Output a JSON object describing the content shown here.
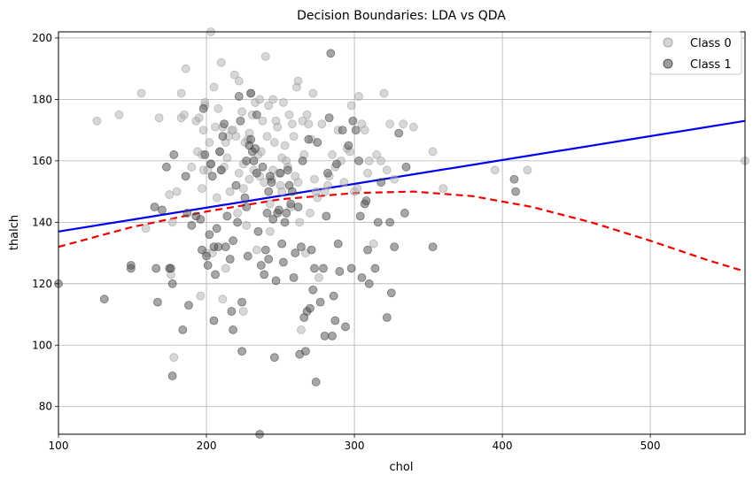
{
  "chart_data": {
    "type": "scatter",
    "title": "Decision Boundaries: LDA vs QDA",
    "xlabel": "chol",
    "ylabel": "thalch",
    "xlim": [
      100,
      564
    ],
    "ylim": [
      71,
      202
    ],
    "xticks": [
      100,
      200,
      300,
      400,
      500
    ],
    "yticks": [
      80,
      100,
      120,
      140,
      160,
      180,
      200
    ],
    "grid": true,
    "legend_position": "top-right",
    "series": [
      {
        "name": "Class 0",
        "color": "#b0b0b0",
        "points": [
          [
            126,
            173
          ],
          [
            141,
            175
          ],
          [
            156,
            182
          ],
          [
            159,
            138
          ],
          [
            168,
            174
          ],
          [
            175,
            149
          ],
          [
            176,
            123
          ],
          [
            177,
            140
          ],
          [
            178,
            96
          ],
          [
            180,
            150
          ],
          [
            183,
            174
          ],
          [
            183,
            182
          ],
          [
            185,
            175
          ],
          [
            186,
            190
          ],
          [
            190,
            158
          ],
          [
            193,
            173
          ],
          [
            194,
            163
          ],
          [
            195,
            174
          ],
          [
            196,
            116
          ],
          [
            197,
            151
          ],
          [
            197,
            162
          ],
          [
            198,
            157
          ],
          [
            198,
            170
          ],
          [
            199,
            178
          ],
          [
            199,
            179
          ],
          [
            200,
            130
          ],
          [
            201,
            157
          ],
          [
            202,
            166
          ],
          [
            203,
            159
          ],
          [
            203,
            202
          ],
          [
            204,
            130
          ],
          [
            205,
            184
          ],
          [
            206,
            171
          ],
          [
            207,
            148
          ],
          [
            208,
            177
          ],
          [
            209,
            163
          ],
          [
            210,
            157
          ],
          [
            210,
            192
          ],
          [
            211,
            171
          ],
          [
            211,
            115
          ],
          [
            212,
            158
          ],
          [
            213,
            166
          ],
          [
            213,
            125
          ],
          [
            214,
            161
          ],
          [
            215,
            168
          ],
          [
            216,
            150
          ],
          [
            217,
            170
          ],
          [
            218,
            170
          ],
          [
            219,
            188
          ],
          [
            220,
            168
          ],
          [
            221,
            143
          ],
          [
            222,
            156
          ],
          [
            222,
            186
          ],
          [
            224,
            176
          ],
          [
            225,
            151
          ],
          [
            225,
            159
          ],
          [
            225,
            111
          ],
          [
            226,
            166
          ],
          [
            227,
            139
          ],
          [
            228,
            167
          ],
          [
            229,
            169
          ],
          [
            229,
            154
          ],
          [
            230,
            182
          ],
          [
            231,
            175
          ],
          [
            232,
            157
          ],
          [
            233,
            179
          ],
          [
            234,
            131
          ],
          [
            235,
            162
          ],
          [
            236,
            155
          ],
          [
            236,
            180
          ],
          [
            237,
            163
          ],
          [
            238,
            173
          ],
          [
            239,
            153
          ],
          [
            240,
            194
          ],
          [
            241,
            168
          ],
          [
            242,
            178
          ],
          [
            243,
            146
          ],
          [
            243,
            137
          ],
          [
            244,
            154
          ],
          [
            245,
            180
          ],
          [
            245,
            157
          ],
          [
            246,
            166
          ],
          [
            247,
            173
          ],
          [
            248,
            171
          ],
          [
            249,
            156
          ],
          [
            250,
            152
          ],
          [
            251,
            150
          ],
          [
            251,
            161
          ],
          [
            252,
            179
          ],
          [
            253,
            165
          ],
          [
            254,
            160
          ],
          [
            255,
            158
          ],
          [
            256,
            175
          ],
          [
            257,
            145
          ],
          [
            258,
            172
          ],
          [
            259,
            168
          ],
          [
            260,
            155
          ],
          [
            261,
            184
          ],
          [
            262,
            186
          ],
          [
            262,
            153
          ],
          [
            263,
            140
          ],
          [
            264,
            105
          ],
          [
            265,
            173
          ],
          [
            266,
            162
          ],
          [
            267,
            130
          ],
          [
            268,
            175
          ],
          [
            269,
            172
          ],
          [
            270,
            143
          ],
          [
            271,
            167
          ],
          [
            272,
            182
          ],
          [
            273,
            154
          ],
          [
            274,
            150
          ],
          [
            275,
            148
          ],
          [
            276,
            122
          ],
          [
            278,
            172
          ],
          [
            280,
            150
          ],
          [
            282,
            152
          ],
          [
            283,
            155
          ],
          [
            285,
            162
          ],
          [
            287,
            158
          ],
          [
            289,
            170
          ],
          [
            291,
            160
          ],
          [
            293,
            153
          ],
          [
            295,
            164
          ],
          [
            297,
            163
          ],
          [
            298,
            178
          ],
          [
            300,
            150
          ],
          [
            302,
            151
          ],
          [
            303,
            181
          ],
          [
            305,
            172
          ],
          [
            307,
            170
          ],
          [
            309,
            156
          ],
          [
            310,
            160
          ],
          [
            313,
            133
          ],
          [
            315,
            162
          ],
          [
            318,
            160
          ],
          [
            320,
            182
          ],
          [
            322,
            157
          ],
          [
            324,
            172
          ],
          [
            327,
            154
          ],
          [
            333,
            172
          ],
          [
            340,
            171
          ],
          [
            353,
            163
          ],
          [
            360,
            151
          ],
          [
            395,
            157
          ],
          [
            417,
            157
          ],
          [
            564,
            160
          ]
        ]
      },
      {
        "name": "Class 1",
        "color": "#4d4d4d",
        "points": [
          [
            100,
            120
          ],
          [
            131,
            115
          ],
          [
            149,
            125
          ],
          [
            149,
            126
          ],
          [
            165,
            145
          ],
          [
            166,
            125
          ],
          [
            167,
            114
          ],
          [
            170,
            144
          ],
          [
            173,
            158
          ],
          [
            175,
            125
          ],
          [
            176,
            125
          ],
          [
            177,
            90
          ],
          [
            177,
            120
          ],
          [
            178,
            162
          ],
          [
            184,
            105
          ],
          [
            186,
            155
          ],
          [
            187,
            143
          ],
          [
            188,
            113
          ],
          [
            190,
            139
          ],
          [
            193,
            142
          ],
          [
            196,
            141
          ],
          [
            197,
            131
          ],
          [
            198,
            177
          ],
          [
            199,
            162
          ],
          [
            200,
            129
          ],
          [
            201,
            126
          ],
          [
            202,
            136
          ],
          [
            203,
            159
          ],
          [
            204,
            155
          ],
          [
            205,
            132
          ],
          [
            205,
            108
          ],
          [
            206,
            123
          ],
          [
            207,
            138
          ],
          [
            208,
            132
          ],
          [
            209,
            163
          ],
          [
            210,
            157
          ],
          [
            211,
            168
          ],
          [
            212,
            172
          ],
          [
            213,
            132
          ],
          [
            214,
            142
          ],
          [
            216,
            128
          ],
          [
            217,
            111
          ],
          [
            218,
            105
          ],
          [
            218,
            134
          ],
          [
            220,
            152
          ],
          [
            221,
            140
          ],
          [
            222,
            181
          ],
          [
            223,
            173
          ],
          [
            224,
            114
          ],
          [
            224,
            98
          ],
          [
            226,
            148
          ],
          [
            227,
            145
          ],
          [
            227,
            160
          ],
          [
            228,
            129
          ],
          [
            229,
            165
          ],
          [
            230,
            167
          ],
          [
            230,
            182
          ],
          [
            231,
            163
          ],
          [
            232,
            160
          ],
          [
            233,
            164
          ],
          [
            234,
            175
          ],
          [
            234,
            156
          ],
          [
            235,
            137
          ],
          [
            236,
            71
          ],
          [
            237,
            126
          ],
          [
            238,
            158
          ],
          [
            239,
            123
          ],
          [
            240,
            131
          ],
          [
            241,
            143
          ],
          [
            242,
            150
          ],
          [
            242,
            128
          ],
          [
            243,
            155
          ],
          [
            244,
            153
          ],
          [
            245,
            141
          ],
          [
            246,
            96
          ],
          [
            247,
            121
          ],
          [
            248,
            143
          ],
          [
            249,
            144
          ],
          [
            250,
            156
          ],
          [
            251,
            133
          ],
          [
            252,
            127
          ],
          [
            253,
            140
          ],
          [
            254,
            143
          ],
          [
            255,
            157
          ],
          [
            256,
            152
          ],
          [
            257,
            146
          ],
          [
            258,
            150
          ],
          [
            259,
            122
          ],
          [
            260,
            130
          ],
          [
            262,
            145
          ],
          [
            263,
            97
          ],
          [
            264,
            132
          ],
          [
            265,
            160
          ],
          [
            266,
            109
          ],
          [
            267,
            98
          ],
          [
            268,
            111
          ],
          [
            269,
            167
          ],
          [
            270,
            112
          ],
          [
            271,
            131
          ],
          [
            272,
            118
          ],
          [
            273,
            125
          ],
          [
            274,
            88
          ],
          [
            275,
            166
          ],
          [
            277,
            114
          ],
          [
            279,
            125
          ],
          [
            280,
            103
          ],
          [
            281,
            142
          ],
          [
            282,
            156
          ],
          [
            283,
            174
          ],
          [
            284,
            195
          ],
          [
            285,
            103
          ],
          [
            286,
            116
          ],
          [
            287,
            108
          ],
          [
            288,
            159
          ],
          [
            289,
            133
          ],
          [
            290,
            124
          ],
          [
            292,
            170
          ],
          [
            294,
            106
          ],
          [
            296,
            165
          ],
          [
            298,
            125
          ],
          [
            299,
            173
          ],
          [
            301,
            170
          ],
          [
            303,
            160
          ],
          [
            304,
            142
          ],
          [
            305,
            122
          ],
          [
            307,
            146
          ],
          [
            308,
            147
          ],
          [
            309,
            131
          ],
          [
            310,
            120
          ],
          [
            314,
            125
          ],
          [
            316,
            140
          ],
          [
            318,
            153
          ],
          [
            322,
            109
          ],
          [
            324,
            140
          ],
          [
            325,
            117
          ],
          [
            327,
            132
          ],
          [
            330,
            169
          ],
          [
            334,
            143
          ],
          [
            335,
            158
          ],
          [
            353,
            132
          ],
          [
            408,
            154
          ],
          [
            409,
            150
          ]
        ]
      }
    ],
    "boundaries": [
      {
        "name": "LDA",
        "color": "#0000ee",
        "style": "solid",
        "points": [
          [
            100,
            137
          ],
          [
            564,
            173
          ]
        ]
      },
      {
        "name": "QDA",
        "color": "#ee0000",
        "style": "dashed",
        "points": [
          [
            100,
            132
          ],
          [
            150,
            138.5
          ],
          [
            200,
            143.5
          ],
          [
            250,
            147.5
          ],
          [
            300,
            149.5
          ],
          [
            340,
            150
          ],
          [
            380,
            148.5
          ],
          [
            420,
            145
          ],
          [
            460,
            140
          ],
          [
            500,
            134
          ],
          [
            540,
            127.5
          ],
          [
            564,
            124
          ]
        ]
      }
    ]
  }
}
